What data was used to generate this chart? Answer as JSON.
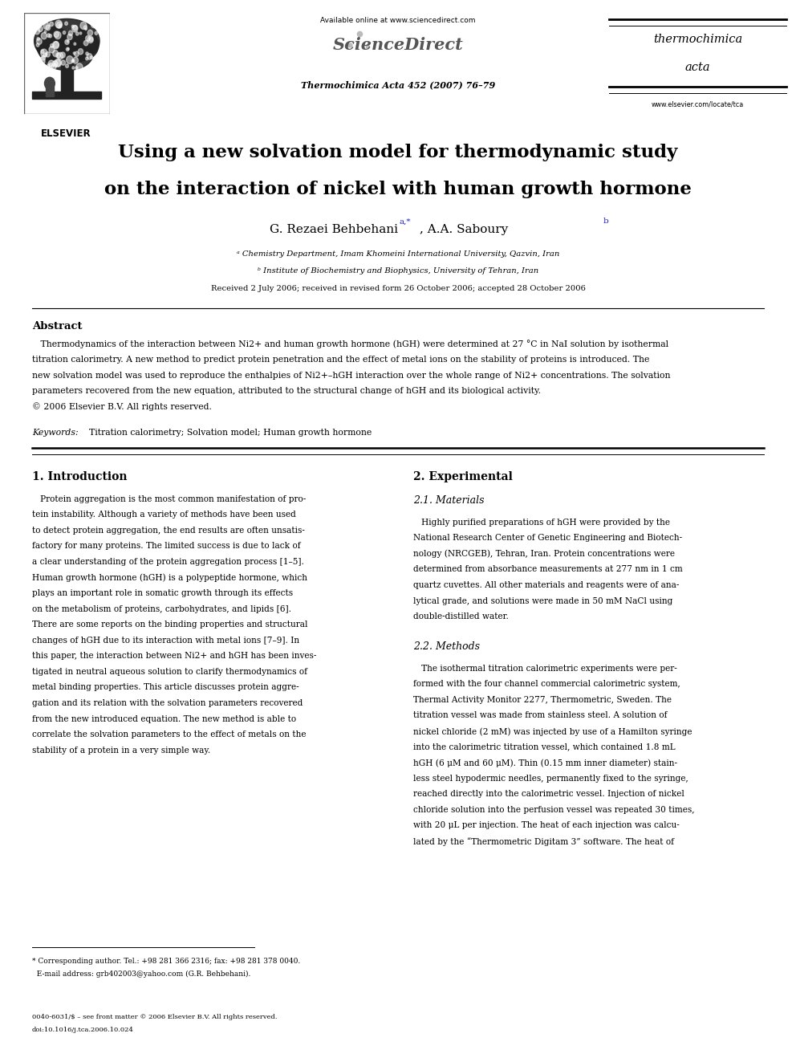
{
  "bg_color": "#ffffff",
  "page_width": 9.92,
  "page_height": 13.23,
  "header": {
    "available_online": "Available online at www.sciencedirect.com",
    "journal_name_line1": "thermochimica",
    "journal_name_line2": "acta",
    "journal_citation": "Thermochimica Acta 452 (2007) 76–79",
    "website": "www.elsevier.com/locate/tca"
  },
  "title_line1": "Using a new solvation model for thermodynamic study",
  "title_line2": "on the interaction of nickel with human growth hormone",
  "authors_left": "G. Rezaei Behbehani",
  "author_super1": "a,*",
  "authors_right": ", A.A. Saboury",
  "author_super2": "b",
  "affil1": "a Chemistry Department, Imam Khomeini International University, Qazvin, Iran",
  "affil2": "b Institute of Biochemistry and Biophysics, University of Tehran, Iran",
  "received": "Received 2 July 2006; received in revised form 26 October 2006; accepted 28 October 2006",
  "abstract_title": "Abstract",
  "abstract_body": "   Thermodynamics of the interaction between Ni2+ and human growth hormone (hGH) were determined at 27 °C in NaI solution by isothermal\ntitration calorimetry. A new method to predict protein penetration and the effect of metal ions on the stability of proteins is introduced. The\nnew solvation model was used to reproduce the enthalpies of Ni2+–hGH interaction over the whole range of Ni2+ concentrations. The solvation\nparameters recovered from the new equation, attributed to the structural change of hGH and its biological activity.\n© 2006 Elsevier B.V. All rights reserved.",
  "keywords_label": "Keywords:",
  "keywords_text": "Titration calorimetry; Solvation model; Human growth hormone",
  "section1_title": "1. Introduction",
  "section2_title": "2. Experimental",
  "section21_title": "2.1. Materials",
  "section22_title": "2.2. Methods",
  "intro_text": "   Protein aggregation is the most common manifestation of pro-\ntein instability. Although a variety of methods have been used\nto detect protein aggregation, the end results are often unsatis-\nfactory for many proteins. The limited success is due to lack of\na clear understanding of the protein aggregation process [1–5].\nHuman growth hormone (hGH) is a polypeptide hormone, which\nplays an important role in somatic growth through its effects\non the metabolism of proteins, carbohydrates, and lipids [6].\nThere are some reports on the binding properties and structural\nchanges of hGH due to its interaction with metal ions [7–9]. In\nthis paper, the interaction between Ni2+ and hGH has been inves-\ntigated in neutral aqueous solution to clarify thermodynamics of\nmetal binding properties. This article discusses protein aggre-\ngation and its relation with the solvation parameters recovered\nfrom the new introduced equation. The new method is able to\ncorrelate the solvation parameters to the effect of metals on the\nstability of a protein in a very simple way.",
  "exp_text": "   Highly purified preparations of hGH were provided by the\nNational Research Center of Genetic Engineering and Biotech-\nnology (NRCGEB), Tehran, Iran. Protein concentrations were\ndetermined from absorbance measurements at 277 nm in 1 cm\nquartz cuvettes. All other materials and reagents were of ana-\nlytical grade, and solutions were made in 50 mM NaCl using\ndouble-distilled water.",
  "methods_text": "   The isothermal titration calorimetric experiments were per-\nformed with the four channel commercial calorimetric system,\nThermal Activity Monitor 2277, Thermometric, Sweden. The\ntitration vessel was made from stainless steel. A solution of\nnickel chloride (2 mM) was injected by use of a Hamilton syringe\ninto the calorimetric titration vessel, which contained 1.8 mL\nhGH (6 μM and 60 μM). Thin (0.15 mm inner diameter) stain-\nless steel hypodermic needles, permanently fixed to the syringe,\nreached directly into the calorimetric vessel. Injection of nickel\nchloride solution into the perfusion vessel was repeated 30 times,\nwith 20 μL per injection. The heat of each injection was calcu-\nlated by the “Thermometric Digitam 3” software. The heat of",
  "footnote_star": "* Corresponding author. Tel.: +98 281 366 2316; fax: +98 281 378 0040.",
  "footnote_email": "  E-mail address: grb402003@yahoo.com (G.R. Behbehani).",
  "footer_line1": "0040-6031/$ – see front matter © 2006 Elsevier B.V. All rights reserved.",
  "footer_line2": "doi:10.1016/j.tca.2006.10.024"
}
